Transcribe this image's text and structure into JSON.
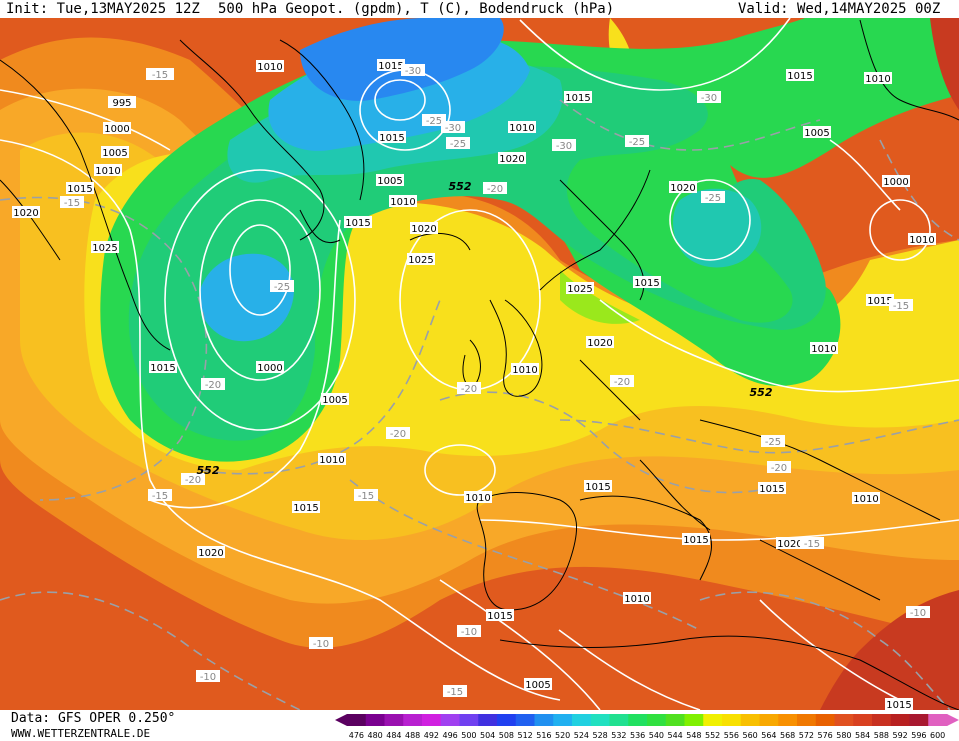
{
  "header": {
    "init": "Init: Tue,13MAY2025 12Z",
    "title": "500 hPa Geopot. (gpdm), T (C), Bodendruck (hPa)",
    "valid": "Valid: Wed,14MAY2025 00Z"
  },
  "footer": {
    "data_source": "Data: GFS OPER 0.250°",
    "website": "WWW.WETTERZENTRALE.DE"
  },
  "colorbar": {
    "ticks": [
      "476",
      "480",
      "484",
      "488",
      "492",
      "496",
      "500",
      "504",
      "508",
      "512",
      "516",
      "520",
      "524",
      "528",
      "532",
      "536",
      "540",
      "544",
      "548",
      "552",
      "556",
      "560",
      "564",
      "568",
      "572",
      "576",
      "580",
      "584",
      "588",
      "592",
      "596",
      "600"
    ],
    "colors": [
      "#5a0060",
      "#7a0090",
      "#9a10b0",
      "#b820d0",
      "#d020e0",
      "#a040f0",
      "#7040f0",
      "#4030e0",
      "#2040f0",
      "#2060f0",
      "#2090f0",
      "#20b0f0",
      "#20d0e0",
      "#20e0c0",
      "#20e090",
      "#20e060",
      "#30e040",
      "#50e020",
      "#80f000",
      "#f0f000",
      "#f8e000",
      "#f8c000",
      "#f8a800",
      "#f89000",
      "#f07800",
      "#e86000",
      "#e05020",
      "#d84020",
      "#c83020",
      "#b82020",
      "#a81830",
      "#e060c0"
    ]
  },
  "map": {
    "colors": {
      "deep_orange": "#e05a1e",
      "orange": "#f08a1e",
      "light_orange": "#f8a828",
      "amber": "#f8c020",
      "yellow": "#f8e01c",
      "yellow_green": "#9ae81c",
      "green": "#28d850",
      "green_mid": "#20cc78",
      "teal": "#20c8b0",
      "cyan": "#28b0e8",
      "blue": "#2888f0",
      "dark_red": "#c83a20",
      "isobar": "#ffffff",
      "isotherm": "#9aa0a8",
      "coast": "#000000"
    },
    "isobar_labels": [
      "1010",
      "1015",
      "995",
      "1000",
      "1005",
      "1010",
      "1015",
      "1020",
      "1025",
      "1015",
      "1000",
      "1005",
      "1010",
      "1015",
      "1020",
      "1010",
      "1015",
      "1005",
      "1010",
      "1015",
      "1020",
      "1025",
      "1015",
      "1010",
      "1025",
      "1020",
      "1015",
      "1020",
      "1025",
      "1015",
      "1015",
      "1010",
      "1015",
      "1020",
      "1015",
      "1005",
      "1000",
      "1010",
      "1015",
      "1010",
      "1015",
      "1015",
      "1010",
      "1015",
      "1010",
      "1005",
      "1015",
      "1020",
      "1010",
      "1015",
      "1010"
    ],
    "temp_labels": [
      "-15",
      "-30",
      "-25",
      "-30",
      "-25",
      "-30",
      "-25",
      "-15",
      "-25",
      "-30",
      "-20",
      "-25",
      "-20",
      "-20",
      "-20",
      "-15",
      "-20",
      "-15",
      "-25",
      "-20",
      "-15",
      "-15",
      "-20",
      "-15",
      "-10",
      "-10",
      "-10",
      "-10"
    ],
    "geopot_labels": [
      "552",
      "552",
      "552"
    ]
  }
}
